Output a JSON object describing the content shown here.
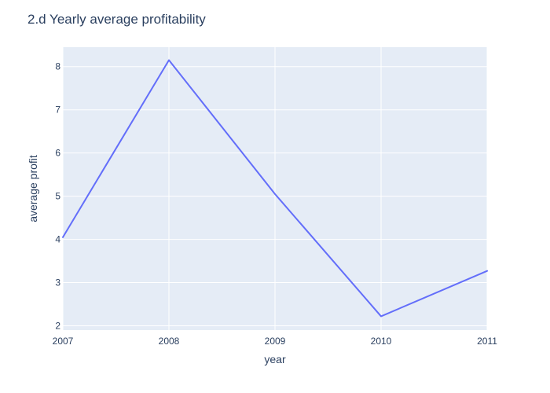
{
  "chart_data": {
    "type": "line",
    "title": "2.d Yearly average profitability",
    "xlabel": "year",
    "ylabel": "average profit",
    "x": [
      2007,
      2008,
      2009,
      2010,
      2011
    ],
    "series": [
      {
        "values": [
          4.05,
          8.15,
          5.05,
          2.22,
          3.27
        ]
      }
    ],
    "x_ticks": [
      "2007",
      "2008",
      "2009",
      "2010",
      "2011"
    ],
    "y_ticks": [
      "2",
      "3",
      "4",
      "5",
      "6",
      "7",
      "8"
    ],
    "xlim": [
      2007,
      2011
    ],
    "ylim": [
      1.9,
      8.45
    ],
    "grid": true,
    "colors": {
      "plot_background": "#e5ecf6",
      "grid": "#ffffff",
      "line": "#636efa",
      "text": "#2a3f5f"
    }
  }
}
